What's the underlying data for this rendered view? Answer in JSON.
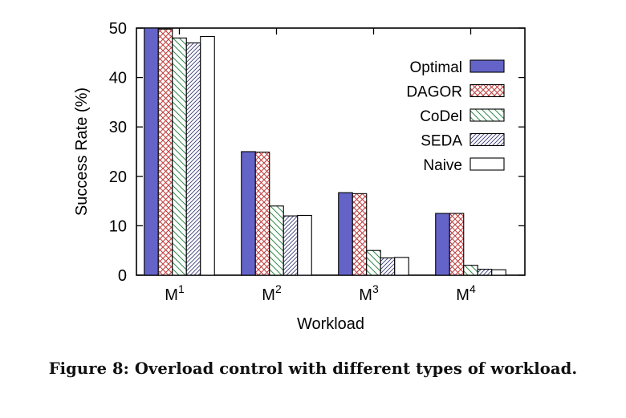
{
  "chart_data": {
    "type": "bar",
    "categories": [
      "M",
      "M",
      "M",
      "M"
    ],
    "category_superscripts": [
      "1",
      "2",
      "3",
      "4"
    ],
    "series": [
      {
        "name": "Optimal",
        "values": [
          50,
          25,
          16.7,
          12.5
        ],
        "color": "#6464c8",
        "pattern": "solid"
      },
      {
        "name": "DAGOR",
        "values": [
          49.8,
          24.9,
          16.5,
          12.5
        ],
        "color": "#c04040",
        "pattern": "crosshatch"
      },
      {
        "name": "CoDel",
        "values": [
          48,
          14,
          5,
          2
        ],
        "color": "#2f8a4a",
        "pattern": "backslash"
      },
      {
        "name": "SEDA",
        "values": [
          47,
          12,
          3.5,
          1.2
        ],
        "color": "#3a3a7a",
        "pattern": "slash"
      },
      {
        "name": "Naive",
        "values": [
          48.3,
          12.1,
          3.6,
          1.1
        ],
        "color": "#000000",
        "pattern": "empty"
      }
    ],
    "xlabel": "Workload",
    "ylabel": "Success Rate (%)",
    "ylim": [
      0,
      50
    ],
    "yticks": [
      "0",
      "10",
      "20",
      "30",
      "40",
      "50"
    ],
    "legend_position": "top-right",
    "grid": false
  },
  "caption": "Figure 8: Overload control with different types of workload."
}
